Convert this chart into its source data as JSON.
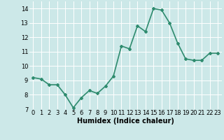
{
  "x": [
    0,
    1,
    2,
    3,
    4,
    5,
    6,
    7,
    8,
    9,
    10,
    11,
    12,
    13,
    14,
    15,
    16,
    17,
    18,
    19,
    20,
    21,
    22,
    23
  ],
  "y": [
    9.2,
    9.1,
    8.7,
    8.7,
    8.0,
    7.1,
    7.8,
    8.3,
    8.1,
    8.6,
    9.3,
    11.4,
    11.2,
    12.8,
    12.4,
    14.0,
    13.9,
    13.0,
    11.6,
    10.5,
    10.4,
    10.4,
    10.9,
    10.9
  ],
  "line_color": "#2e8b6e",
  "marker": "D",
  "marker_size": 2.0,
  "bg_color": "#cce8e8",
  "grid_color": "#ffffff",
  "xlabel": "Humidex (Indice chaleur)",
  "ylim": [
    7,
    14.5
  ],
  "xlim": [
    -0.5,
    23.5
  ],
  "yticks": [
    7,
    8,
    9,
    10,
    11,
    12,
    13,
    14
  ],
  "xticks": [
    0,
    1,
    2,
    3,
    4,
    5,
    6,
    7,
    8,
    9,
    10,
    11,
    12,
    13,
    14,
    15,
    16,
    17,
    18,
    19,
    20,
    21,
    22,
    23
  ],
  "xlabel_fontsize": 7,
  "tick_fontsize": 6,
  "line_width": 1.2
}
